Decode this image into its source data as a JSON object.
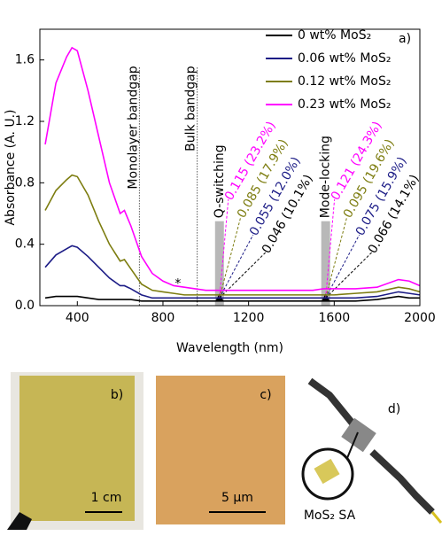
{
  "chart_data": {
    "type": "line",
    "xlabel": "Wavelength (nm)",
    "ylabel": "Absorbance (A. U.)",
    "panel_label": "a)",
    "xlim": [
      225,
      2000
    ],
    "xticks": [
      400,
      800,
      1200,
      1600,
      2000
    ],
    "ylim": [
      0,
      1.8
    ],
    "yticks": [
      {
        "value": 0,
        "label": "0.0"
      },
      0.4,
      0.8,
      1.2,
      1.6
    ],
    "x": [
      250,
      300,
      350,
      375,
      400,
      450,
      500,
      550,
      600,
      620,
      650,
      700,
      750,
      800,
      850,
      900,
      950,
      1000,
      1050,
      1100,
      1200,
      1300,
      1400,
      1500,
      1550,
      1600,
      1700,
      1800,
      1900,
      1950,
      2000
    ],
    "series": [
      {
        "name": "0 wt% MoS₂",
        "color": "#000000",
        "values": [
          0.05,
          0.06,
          0.06,
          0.06,
          0.06,
          0.05,
          0.04,
          0.04,
          0.04,
          0.04,
          0.04,
          0.03,
          0.03,
          0.03,
          0.03,
          0.03,
          0.03,
          0.03,
          0.03,
          0.03,
          0.03,
          0.03,
          0.03,
          0.03,
          0.03,
          0.03,
          0.03,
          0.04,
          0.06,
          0.05,
          0.05
        ]
      },
      {
        "name": "0.06 wt% MoS₂",
        "color": "#1c1c86",
        "values": [
          0.25,
          0.33,
          0.37,
          0.39,
          0.38,
          0.32,
          0.25,
          0.18,
          0.13,
          0.13,
          0.11,
          0.07,
          0.05,
          0.05,
          0.05,
          0.05,
          0.05,
          0.05,
          0.05,
          0.05,
          0.05,
          0.05,
          0.05,
          0.05,
          0.05,
          0.05,
          0.05,
          0.06,
          0.09,
          0.08,
          0.07
        ]
      },
      {
        "name": "0.12 wt% MoS₂",
        "color": "#7d7d10",
        "values": [
          0.62,
          0.75,
          0.82,
          0.85,
          0.84,
          0.72,
          0.55,
          0.4,
          0.29,
          0.3,
          0.24,
          0.14,
          0.1,
          0.09,
          0.08,
          0.07,
          0.07,
          0.07,
          0.07,
          0.07,
          0.07,
          0.07,
          0.07,
          0.07,
          0.07,
          0.07,
          0.08,
          0.09,
          0.12,
          0.11,
          0.09
        ]
      },
      {
        "name": "0.23 wt% MoS₂",
        "color": "#ff00ff",
        "values": [
          1.05,
          1.45,
          1.62,
          1.68,
          1.66,
          1.4,
          1.1,
          0.8,
          0.6,
          0.62,
          0.52,
          0.32,
          0.21,
          0.16,
          0.13,
          0.12,
          0.11,
          0.1,
          0.1,
          0.1,
          0.1,
          0.1,
          0.1,
          0.1,
          0.11,
          0.11,
          0.11,
          0.12,
          0.17,
          0.16,
          0.13
        ]
      }
    ],
    "vlines": [
      {
        "x": 690,
        "text": "Monolayer bandgap"
      },
      {
        "x": 960,
        "text": "Bulk bandgap"
      }
    ],
    "bands": [
      {
        "x": 1064,
        "text": "Q-switching",
        "labels": [
          {
            "text": "0.115 (23.2%)",
            "color": "#ff00ff"
          },
          {
            "text": "0.085 (17.9%)",
            "color": "#7d7d10"
          },
          {
            "text": "0.055 (12.0%)",
            "color": "#1c1c86"
          },
          {
            "text": "0.046 (10.1%)",
            "color": "#000000"
          }
        ]
      },
      {
        "x": 1560,
        "text": "Mode-locking",
        "labels": [
          {
            "text": "0.121 (24.3%)",
            "color": "#ff00ff"
          },
          {
            "text": "0.095 (19.6%)",
            "color": "#7d7d10"
          },
          {
            "text": "0.075 (15.9%)",
            "color": "#1c1c86"
          },
          {
            "text": "0.066 (14.1%)",
            "color": "#000000"
          }
        ]
      }
    ],
    "star": {
      "x": 870,
      "y": 0.14,
      "text": "*"
    }
  },
  "panels": [
    {
      "label": "b)",
      "scale_bar": "1 cm"
    },
    {
      "label": "c)",
      "scale_bar": "5 µm"
    },
    {
      "label": "d)",
      "caption": "MoS₂ SA"
    }
  ]
}
